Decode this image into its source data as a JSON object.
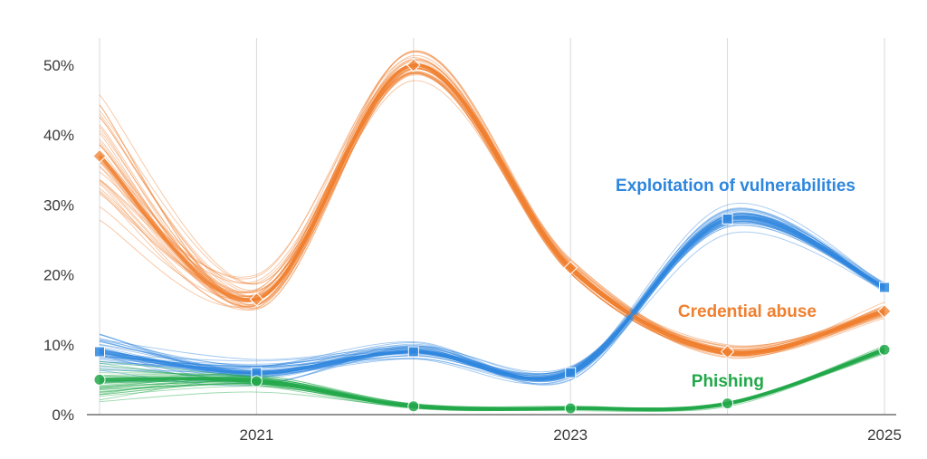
{
  "chart_data": {
    "type": "line",
    "title": "",
    "xlabel": "",
    "ylabel": "",
    "x": [
      2020,
      2021,
      2022,
      2023,
      2024,
      2025
    ],
    "xlim": [
      2020,
      2025
    ],
    "ylim": [
      0,
      54
    ],
    "grid": true,
    "x_ticks": [
      2021,
      2023,
      2025
    ],
    "x_tick_labels": [
      "2021",
      "2023",
      "2025"
    ],
    "y_ticks": [
      0,
      10,
      20,
      30,
      40,
      50
    ],
    "y_tick_labels": [
      "0%",
      "10%",
      "20%",
      "30%",
      "40%",
      "50%"
    ],
    "series": [
      {
        "name": "Credential abuse",
        "color": "#f07f2e",
        "marker": "diamond",
        "values": [
          37,
          16.5,
          50,
          21,
          9,
          14.8
        ],
        "label": "Credential abuse"
      },
      {
        "name": "Exploitation of vulnerabilities",
        "color": "#2e86de",
        "marker": "square",
        "values": [
          9,
          6,
          9,
          6,
          28,
          18.2
        ],
        "label": "Exploitation of vulnerabilities"
      },
      {
        "name": "Phishing",
        "color": "#22a84a",
        "marker": "circle",
        "values": [
          5,
          4.8,
          1.2,
          0.9,
          1.6,
          9.3
        ],
        "label": "Phishing"
      }
    ]
  }
}
